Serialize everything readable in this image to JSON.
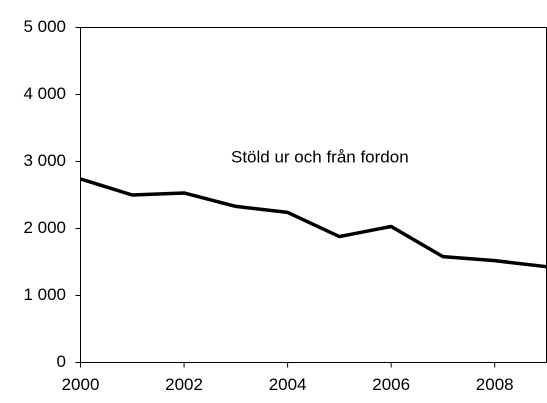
{
  "chart_data": {
    "type": "line",
    "annotation": "Stöld ur och från fordon",
    "x": [
      2000,
      2001,
      2002,
      2003,
      2004,
      2005,
      2006,
      2007,
      2008,
      2009
    ],
    "series": [
      {
        "color": "#000000",
        "values": [
          2740,
          2500,
          2530,
          2330,
          2240,
          1880,
          2030,
          1580,
          1520,
          1430
        ]
      }
    ],
    "xlim": [
      2000,
      2009
    ],
    "xticks": [
      2000,
      2002,
      2004,
      2006,
      2008
    ],
    "ylim": [
      0,
      5000
    ],
    "yticks": [
      0,
      {
        "value": 1000,
        "label": "1 000"
      },
      {
        "value": 2000,
        "label": "2 000"
      },
      {
        "value": 3000,
        "label": "3 000"
      },
      {
        "value": 4000,
        "label": "4 000"
      },
      {
        "value": 5000,
        "label": "5 000"
      }
    ],
    "grid": false
  }
}
